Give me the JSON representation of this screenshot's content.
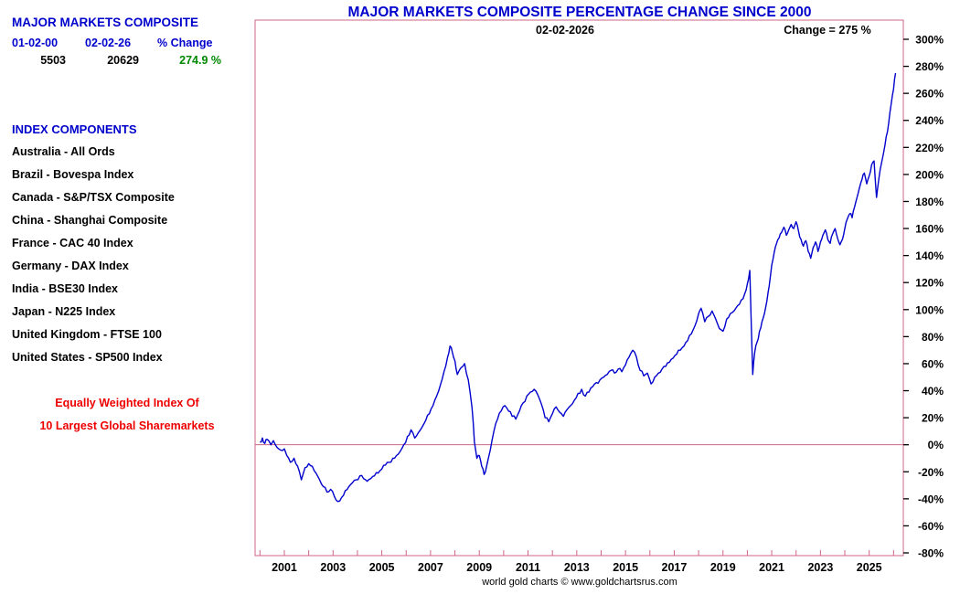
{
  "page": {
    "footer": "world gold charts © www.goldchartsrus.com"
  },
  "sidebar": {
    "title": "MAJOR MARKETS COMPOSITE",
    "summary": {
      "headers": [
        "01-02-00",
        "02-02-26",
        "% Change"
      ],
      "values": [
        "5503",
        "20629",
        "274.9 %"
      ]
    },
    "components_title": "INDEX COMPONENTS",
    "components": [
      "Australia - All Ords",
      "Brazil - Bovespa Index",
      "Canada - S&P/TSX Composite",
      "China - Shanghai Composite",
      "France - CAC 40 Index",
      "Germany - DAX Index",
      "India - BSE30 Index",
      "Japan - N225 Index",
      "United Kingdom - FTSE 100",
      "United States - SP500 Index"
    ],
    "note": [
      "Equally Weighted Index Of",
      "10 Largest Global Sharemarkets"
    ]
  },
  "chart": {
    "title": "MAJOR MARKETS COMPOSITE PERCENTAGE CHANGE SINCE 2000",
    "date_label": "02-02-2026",
    "change_label": "Change = 275 %"
  },
  "colors": {
    "title_blue": "#0000cc",
    "line_blue": "#0000cc",
    "axis_pink": "#cc6688",
    "value_green": "#008800",
    "note_red": "#ee0000"
  },
  "chart_data": {
    "type": "line",
    "title": "MAJOR MARKETS COMPOSITE PERCENTAGE CHANGE SINCE 2000",
    "legend": "none",
    "grid": "off",
    "y_tick_suffix": "%",
    "xlim": [
      1999.8,
      2026.4
    ],
    "ylim": [
      -80,
      300
    ],
    "zero_line": 0,
    "y_ticks": [
      300,
      280,
      260,
      240,
      220,
      200,
      180,
      160,
      140,
      120,
      100,
      80,
      60,
      40,
      20,
      0,
      -20,
      -40,
      -60,
      -80
    ],
    "x_ticks": [
      2001,
      2003,
      2005,
      2007,
      2009,
      2011,
      2013,
      2015,
      2017,
      2019,
      2021,
      2023,
      2025
    ],
    "series": [
      {
        "name": "Major Markets Composite % Change Since 2000",
        "points": [
          [
            2000.0,
            2
          ],
          [
            2000.1,
            5
          ],
          [
            2000.2,
            1
          ],
          [
            2000.3,
            4
          ],
          [
            2000.45,
            0
          ],
          [
            2000.55,
            3
          ],
          [
            2000.7,
            -2
          ],
          [
            2000.85,
            -4
          ],
          [
            2001.0,
            -3
          ],
          [
            2001.1,
            -8
          ],
          [
            2001.25,
            -13
          ],
          [
            2001.4,
            -10
          ],
          [
            2001.55,
            -16
          ],
          [
            2001.7,
            -26
          ],
          [
            2001.85,
            -17
          ],
          [
            2002.0,
            -14
          ],
          [
            2002.15,
            -16
          ],
          [
            2002.3,
            -21
          ],
          [
            2002.45,
            -26
          ],
          [
            2002.6,
            -31
          ],
          [
            2002.75,
            -35
          ],
          [
            2002.9,
            -33
          ],
          [
            2003.05,
            -38
          ],
          [
            2003.2,
            -42
          ],
          [
            2003.35,
            -39
          ],
          [
            2003.5,
            -34
          ],
          [
            2003.65,
            -31
          ],
          [
            2003.8,
            -28
          ],
          [
            2003.95,
            -26
          ],
          [
            2004.1,
            -23
          ],
          [
            2004.25,
            -25
          ],
          [
            2004.4,
            -27
          ],
          [
            2004.55,
            -25
          ],
          [
            2004.7,
            -23
          ],
          [
            2004.85,
            -21
          ],
          [
            2005.0,
            -18
          ],
          [
            2005.15,
            -15
          ],
          [
            2005.3,
            -13
          ],
          [
            2005.45,
            -10
          ],
          [
            2005.6,
            -8
          ],
          [
            2005.75,
            -5
          ],
          [
            2005.9,
            0
          ],
          [
            2006.05,
            6
          ],
          [
            2006.2,
            11
          ],
          [
            2006.35,
            5
          ],
          [
            2006.5,
            9
          ],
          [
            2006.65,
            13
          ],
          [
            2006.8,
            18
          ],
          [
            2006.95,
            23
          ],
          [
            2007.1,
            29
          ],
          [
            2007.25,
            36
          ],
          [
            2007.4,
            44
          ],
          [
            2007.55,
            54
          ],
          [
            2007.7,
            65
          ],
          [
            2007.8,
            73
          ],
          [
            2007.9,
            68
          ],
          [
            2008.0,
            62
          ],
          [
            2008.1,
            52
          ],
          [
            2008.25,
            57
          ],
          [
            2008.4,
            60
          ],
          [
            2008.55,
            48
          ],
          [
            2008.7,
            28
          ],
          [
            2008.8,
            2
          ],
          [
            2008.9,
            -10
          ],
          [
            2009.0,
            -8
          ],
          [
            2009.1,
            -16
          ],
          [
            2009.2,
            -22
          ],
          [
            2009.3,
            -16
          ],
          [
            2009.45,
            -4
          ],
          [
            2009.6,
            10
          ],
          [
            2009.75,
            19
          ],
          [
            2009.9,
            25
          ],
          [
            2010.05,
            29
          ],
          [
            2010.2,
            25
          ],
          [
            2010.35,
            21
          ],
          [
            2010.5,
            19
          ],
          [
            2010.65,
            25
          ],
          [
            2010.8,
            31
          ],
          [
            2010.95,
            36
          ],
          [
            2011.1,
            39
          ],
          [
            2011.25,
            41
          ],
          [
            2011.4,
            37
          ],
          [
            2011.55,
            30
          ],
          [
            2011.7,
            20
          ],
          [
            2011.85,
            17
          ],
          [
            2012.0,
            23
          ],
          [
            2012.15,
            28
          ],
          [
            2012.3,
            24
          ],
          [
            2012.45,
            21
          ],
          [
            2012.6,
            26
          ],
          [
            2012.75,
            29
          ],
          [
            2012.9,
            33
          ],
          [
            2013.05,
            38
          ],
          [
            2013.2,
            41
          ],
          [
            2013.35,
            36
          ],
          [
            2013.5,
            39
          ],
          [
            2013.65,
            43
          ],
          [
            2013.8,
            46
          ],
          [
            2013.95,
            48
          ],
          [
            2014.1,
            50
          ],
          [
            2014.25,
            52
          ],
          [
            2014.4,
            55
          ],
          [
            2014.55,
            53
          ],
          [
            2014.7,
            56
          ],
          [
            2014.85,
            54
          ],
          [
            2015.0,
            59
          ],
          [
            2015.15,
            65
          ],
          [
            2015.3,
            70
          ],
          [
            2015.45,
            65
          ],
          [
            2015.6,
            55
          ],
          [
            2015.75,
            51
          ],
          [
            2015.9,
            53
          ],
          [
            2016.05,
            45
          ],
          [
            2016.2,
            50
          ],
          [
            2016.35,
            53
          ],
          [
            2016.5,
            56
          ],
          [
            2016.65,
            58
          ],
          [
            2016.8,
            61
          ],
          [
            2016.95,
            64
          ],
          [
            2017.1,
            67
          ],
          [
            2017.25,
            70
          ],
          [
            2017.4,
            73
          ],
          [
            2017.55,
            77
          ],
          [
            2017.7,
            82
          ],
          [
            2017.85,
            88
          ],
          [
            2018.0,
            97
          ],
          [
            2018.1,
            101
          ],
          [
            2018.25,
            91
          ],
          [
            2018.4,
            95
          ],
          [
            2018.55,
            99
          ],
          [
            2018.7,
            93
          ],
          [
            2018.85,
            86
          ],
          [
            2019.0,
            84
          ],
          [
            2019.15,
            93
          ],
          [
            2019.3,
            97
          ],
          [
            2019.45,
            99
          ],
          [
            2019.6,
            103
          ],
          [
            2019.75,
            107
          ],
          [
            2019.9,
            112
          ],
          [
            2020.0,
            119
          ],
          [
            2020.1,
            129
          ],
          [
            2020.22,
            52
          ],
          [
            2020.3,
            68
          ],
          [
            2020.4,
            76
          ],
          [
            2020.5,
            84
          ],
          [
            2020.6,
            91
          ],
          [
            2020.7,
            97
          ],
          [
            2020.8,
            106
          ],
          [
            2020.9,
            118
          ],
          [
            2021.0,
            133
          ],
          [
            2021.1,
            142
          ],
          [
            2021.2,
            149
          ],
          [
            2021.3,
            153
          ],
          [
            2021.4,
            157
          ],
          [
            2021.5,
            161
          ],
          [
            2021.6,
            155
          ],
          [
            2021.7,
            159
          ],
          [
            2021.8,
            163
          ],
          [
            2021.9,
            160
          ],
          [
            2022.0,
            165
          ],
          [
            2022.1,
            158
          ],
          [
            2022.2,
            152
          ],
          [
            2022.3,
            147
          ],
          [
            2022.4,
            151
          ],
          [
            2022.5,
            143
          ],
          [
            2022.6,
            138
          ],
          [
            2022.7,
            146
          ],
          [
            2022.8,
            150
          ],
          [
            2022.9,
            143
          ],
          [
            2023.0,
            150
          ],
          [
            2023.1,
            155
          ],
          [
            2023.2,
            159
          ],
          [
            2023.3,
            152
          ],
          [
            2023.4,
            149
          ],
          [
            2023.5,
            156
          ],
          [
            2023.6,
            160
          ],
          [
            2023.7,
            153
          ],
          [
            2023.8,
            148
          ],
          [
            2023.9,
            152
          ],
          [
            2024.0,
            160
          ],
          [
            2024.1,
            167
          ],
          [
            2024.2,
            171
          ],
          [
            2024.3,
            168
          ],
          [
            2024.4,
            176
          ],
          [
            2024.5,
            183
          ],
          [
            2024.6,
            190
          ],
          [
            2024.7,
            196
          ],
          [
            2024.8,
            201
          ],
          [
            2024.9,
            193
          ],
          [
            2025.0,
            199
          ],
          [
            2025.1,
            207
          ],
          [
            2025.2,
            210
          ],
          [
            2025.3,
            183
          ],
          [
            2025.4,
            197
          ],
          [
            2025.5,
            208
          ],
          [
            2025.6,
            217
          ],
          [
            2025.7,
            228
          ],
          [
            2025.8,
            238
          ],
          [
            2025.9,
            252
          ],
          [
            2026.0,
            263
          ],
          [
            2026.08,
            275
          ]
        ]
      }
    ]
  }
}
